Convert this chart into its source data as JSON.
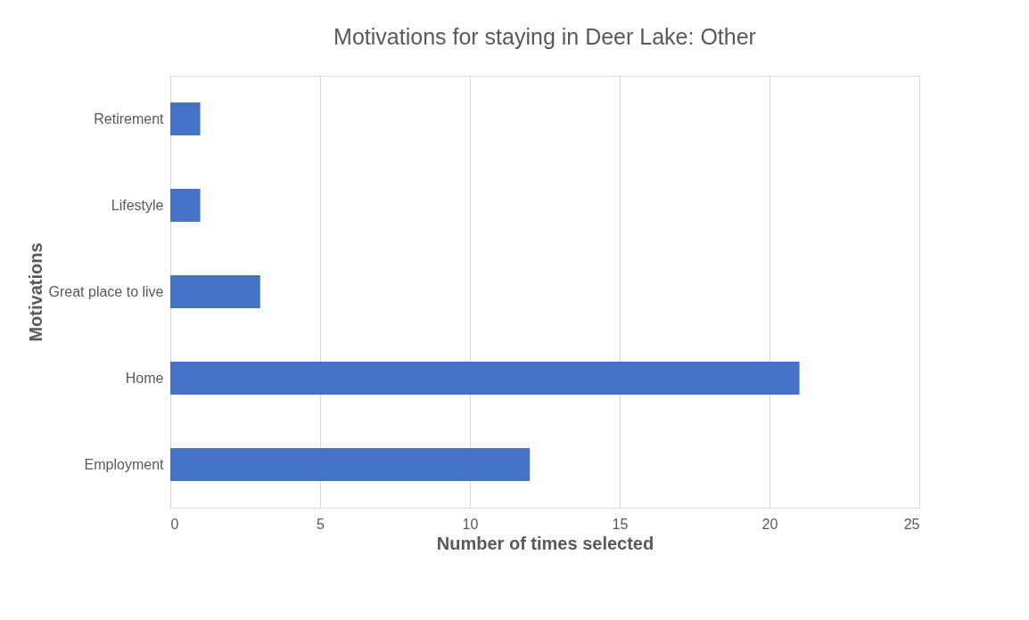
{
  "chart_data": {
    "type": "bar",
    "orientation": "horizontal",
    "title": "Motivations for staying in Deer Lake: Other",
    "xlabel": "Number of times selected",
    "ylabel": "Motivations",
    "categories": [
      "Retirement",
      "Lifestyle",
      "Great place to live",
      "Home",
      "Employment"
    ],
    "values": [
      1,
      1,
      3,
      21,
      12
    ],
    "color": "#4472c4",
    "xlim": [
      0,
      25
    ],
    "xticks": [
      0,
      5,
      10,
      15,
      20,
      25
    ],
    "grid": "x"
  }
}
